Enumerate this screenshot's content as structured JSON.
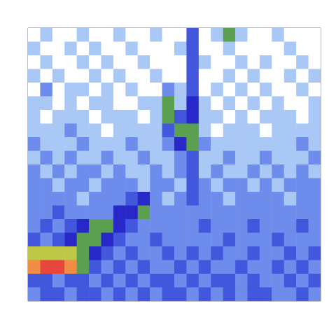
{
  "chart_data": {
    "type": "heatmap",
    "tick_labels": false,
    "xlim": [
      0,
      24
    ],
    "ylim": [
      0,
      20
    ],
    "zlim": [
      0,
      10
    ],
    "cells": [
      [
        2,
        3,
        1,
        2,
        3,
        2,
        1,
        3,
        2,
        2,
        3,
        1,
        2,
        5,
        2,
        3,
        7,
        3,
        2,
        1,
        3,
        2,
        2,
        1
      ],
      [
        3,
        2,
        2,
        3,
        1,
        3,
        2,
        2,
        3,
        1,
        2,
        2,
        3,
        5,
        2,
        2,
        3,
        2,
        1,
        2,
        2,
        3,
        1,
        2
      ],
      [
        2,
        3,
        2,
        2,
        3,
        2,
        3,
        1,
        2,
        3,
        2,
        1,
        2,
        5,
        3,
        2,
        2,
        3,
        2,
        3,
        1,
        2,
        3,
        2
      ],
      [
        3,
        2,
        3,
        1,
        2,
        3,
        2,
        3,
        2,
        2,
        3,
        2,
        2,
        5,
        2,
        1,
        3,
        2,
        3,
        2,
        2,
        3,
        2,
        3
      ],
      [
        2,
        4,
        2,
        3,
        3,
        2,
        3,
        2,
        3,
        2,
        2,
        4,
        3,
        5,
        2,
        3,
        2,
        3,
        2,
        3,
        2,
        2,
        3,
        2
      ],
      [
        3,
        3,
        2,
        3,
        2,
        3,
        3,
        2,
        2,
        3,
        3,
        7,
        3,
        6,
        3,
        2,
        3,
        2,
        3,
        2,
        3,
        2,
        2,
        3
      ],
      [
        3,
        2,
        3,
        3,
        3,
        2,
        3,
        3,
        3,
        2,
        3,
        7,
        5,
        6,
        3,
        3,
        2,
        3,
        2,
        3,
        3,
        3,
        2,
        3
      ],
      [
        3,
        3,
        3,
        4,
        3,
        3,
        2,
        3,
        3,
        3,
        3,
        5,
        7,
        7,
        3,
        2,
        3,
        3,
        3,
        2,
        3,
        3,
        3,
        3
      ],
      [
        4,
        3,
        3,
        3,
        4,
        3,
        3,
        3,
        4,
        3,
        3,
        4,
        6,
        7,
        4,
        3,
        3,
        3,
        3,
        3,
        3,
        3,
        4,
        3
      ],
      [
        3,
        4,
        3,
        4,
        3,
        3,
        4,
        3,
        3,
        4,
        3,
        3,
        4,
        5,
        3,
        3,
        4,
        3,
        3,
        4,
        3,
        3,
        3,
        4
      ],
      [
        4,
        3,
        4,
        3,
        4,
        4,
        3,
        4,
        3,
        3,
        4,
        3,
        4,
        5,
        3,
        4,
        3,
        3,
        4,
        3,
        4,
        3,
        4,
        3
      ],
      [
        4,
        4,
        3,
        4,
        4,
        3,
        4,
        4,
        4,
        3,
        4,
        4,
        3,
        5,
        4,
        3,
        4,
        4,
        3,
        4,
        3,
        4,
        4,
        4
      ],
      [
        4,
        4,
        4,
        4,
        3,
        4,
        4,
        4,
        5,
        6,
        4,
        3,
        4,
        5,
        4,
        4,
        3,
        4,
        4,
        4,
        4,
        3,
        4,
        4
      ],
      [
        4,
        4,
        5,
        4,
        4,
        4,
        4,
        6,
        6,
        7,
        4,
        4,
        4,
        4,
        4,
        4,
        4,
        4,
        4,
        4,
        4,
        4,
        4,
        4
      ],
      [
        4,
        5,
        4,
        5,
        6,
        7,
        7,
        6,
        5,
        4,
        4,
        4,
        4,
        4,
        5,
        4,
        4,
        4,
        5,
        4,
        4,
        4,
        5,
        4
      ],
      [
        5,
        4,
        5,
        6,
        7,
        7,
        6,
        5,
        4,
        4,
        5,
        4,
        4,
        4,
        4,
        4,
        5,
        4,
        4,
        4,
        5,
        4,
        4,
        4
      ],
      [
        8,
        8,
        8,
        8,
        7,
        6,
        5,
        4,
        5,
        4,
        4,
        5,
        4,
        5,
        4,
        5,
        4,
        4,
        5,
        4,
        4,
        5,
        4,
        5
      ],
      [
        9,
        10,
        10,
        9,
        7,
        5,
        4,
        5,
        4,
        5,
        4,
        4,
        5,
        4,
        5,
        4,
        4,
        5,
        4,
        4,
        5,
        4,
        5,
        4
      ],
      [
        5,
        5,
        4,
        5,
        5,
        4,
        5,
        4,
        5,
        4,
        5,
        5,
        4,
        5,
        4,
        5,
        5,
        4,
        5,
        4,
        4,
        5,
        4,
        5
      ],
      [
        4,
        5,
        5,
        4,
        5,
        5,
        4,
        5,
        4,
        5,
        4,
        5,
        5,
        4,
        5,
        4,
        5,
        4,
        5,
        5,
        4,
        4,
        5,
        4
      ]
    ]
  }
}
